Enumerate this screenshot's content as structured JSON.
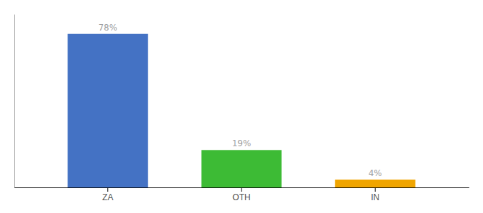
{
  "chart_data": {
    "type": "bar",
    "categories": [
      "ZA",
      "OTH",
      "IN"
    ],
    "values": [
      78,
      19,
      4
    ],
    "value_labels": [
      "78%",
      "19%",
      "4%"
    ],
    "colors": [
      "#4472c4",
      "#3dbb35",
      "#f0a500"
    ],
    "ylim": [
      0,
      88
    ],
    "grid": false,
    "data_labels": true,
    "tick_labels": "x"
  }
}
